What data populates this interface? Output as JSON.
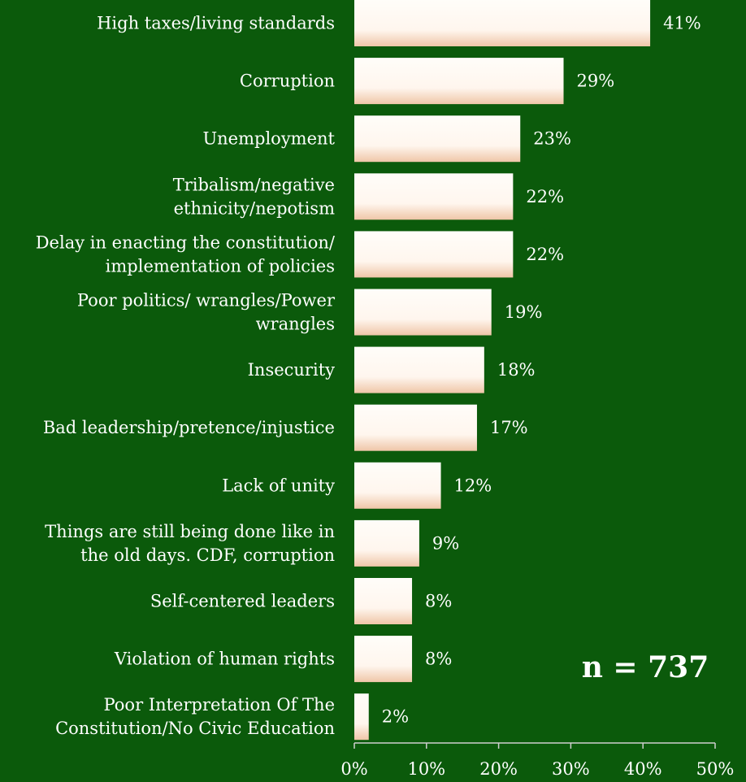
{
  "chart_data": {
    "type": "bar",
    "orientation": "horizontal",
    "categories": [
      [
        "High taxes/living standards"
      ],
      [
        "Corruption"
      ],
      [
        "Unemployment"
      ],
      [
        "Tribalism/negative",
        "ethnicity/nepotism"
      ],
      [
        "Delay in enacting the constitution/",
        "implementation of policies"
      ],
      [
        "Poor politics/ wrangles/Power",
        "wrangles"
      ],
      [
        "Insecurity"
      ],
      [
        "Bad leadership/pretence/injustice"
      ],
      [
        "Lack of unity"
      ],
      [
        "Things are still being done like in",
        "the old days. CDF, corruption"
      ],
      [
        "Self-centered leaders"
      ],
      [
        "Violation of human rights"
      ],
      [
        "Poor Interpretation Of The",
        "Constitution/No Civic Education"
      ]
    ],
    "values": [
      41,
      29,
      23,
      22,
      22,
      19,
      18,
      17,
      12,
      9,
      8,
      8,
      2
    ],
    "value_labels": [
      "41%",
      "29%",
      "23%",
      "22%",
      "22%",
      "19%",
      "18%",
      "17%",
      "12%",
      "9%",
      "8%",
      "8%",
      "2%"
    ],
    "xlim": [
      0,
      50
    ],
    "x_ticks": [
      0,
      10,
      20,
      30,
      40,
      50
    ],
    "x_tick_labels": [
      "0%",
      "10%",
      "20%",
      "30%",
      "40%",
      "50%"
    ],
    "annotation": "n = 737",
    "grid": false,
    "colors": {
      "background": "#0b5a0b",
      "bar": "#fffaf5",
      "bar_shade": "#f2c7a8",
      "text": "#ffffff",
      "axis": "#cfcfcf"
    }
  }
}
